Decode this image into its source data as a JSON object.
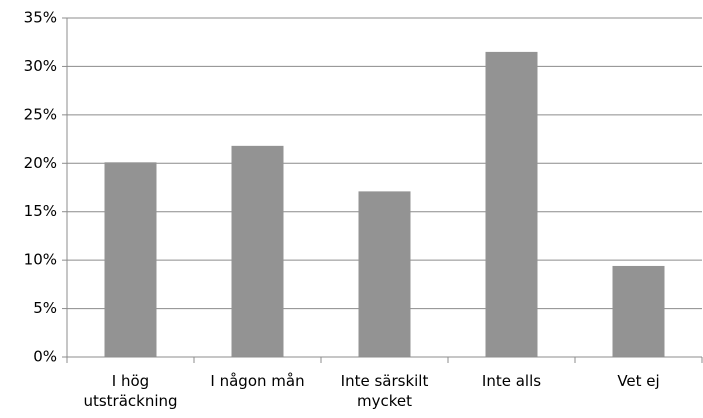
{
  "chart_data": {
    "type": "bar",
    "categories": [
      "I hög utsträckning",
      "I någon mån",
      "Inte särskilt mycket",
      "Inte alls",
      "Vet ej"
    ],
    "values": [
      20.1,
      21.8,
      17.1,
      31.5,
      9.4
    ],
    "color": "#939393",
    "ylim": [
      0,
      35
    ],
    "yticks": [
      {
        "value": 0,
        "label": "0%"
      },
      {
        "value": 5,
        "label": "5%"
      },
      {
        "value": 10,
        "label": "10%"
      },
      {
        "value": 15,
        "label": "15%"
      },
      {
        "value": 20,
        "label": "20%"
      },
      {
        "value": 25,
        "label": "25%"
      },
      {
        "value": 30,
        "label": "30%"
      },
      {
        "value": 35,
        "label": "35%"
      }
    ],
    "grid": true
  }
}
